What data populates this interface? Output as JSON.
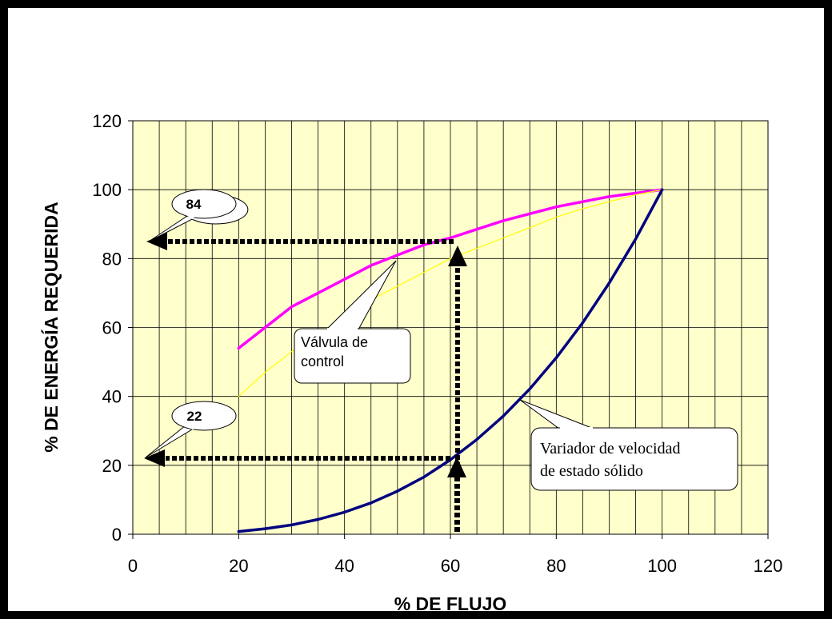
{
  "chart_data": {
    "type": "line",
    "xlabel": "% DE FLUJO",
    "ylabel": "% DE ENERGÍA REQUERIDA",
    "xlim": [
      0,
      120
    ],
    "ylim": [
      0,
      120
    ],
    "xticks": [
      0,
      20,
      40,
      60,
      80,
      100,
      120
    ],
    "yticks": [
      0,
      20,
      40,
      60,
      80,
      100,
      120
    ],
    "grid": true,
    "plot_background": "#FFFFCC",
    "series": [
      {
        "color": "#FF00FF",
        "x": [
          20,
          25,
          30,
          35,
          40,
          45,
          50,
          55,
          60,
          65,
          70,
          75,
          80,
          85,
          90,
          95,
          100
        ],
        "y": [
          54,
          60,
          66,
          70,
          74,
          78,
          81,
          84,
          86,
          88.5,
          91,
          93,
          95,
          96.5,
          98,
          99,
          100
        ]
      },
      {
        "color": "#FFFF00",
        "x": [
          20,
          25,
          30,
          35,
          40,
          45,
          50,
          55,
          60,
          65,
          70,
          75,
          80,
          85,
          90,
          95,
          100
        ],
        "y": [
          40,
          47,
          53,
          58,
          63,
          68,
          72,
          76,
          80,
          83,
          86,
          89,
          92,
          94.5,
          96.5,
          98.5,
          100
        ]
      },
      {
        "color": "#000080",
        "x": [
          20,
          25,
          30,
          35,
          40,
          45,
          50,
          55,
          60,
          65,
          70,
          75,
          80,
          85,
          90,
          95,
          100
        ],
        "y": [
          0.8,
          1.6,
          2.7,
          4.3,
          6.4,
          9.1,
          12.5,
          16.6,
          21.6,
          27.5,
          34.3,
          42.2,
          51.2,
          61.4,
          72.9,
          85.7,
          100
        ]
      }
    ],
    "annotations": {
      "bubble_top": "84",
      "bubble_bottom": "22",
      "valve_line1": "Válvula de",
      "valve_line2": "control",
      "vsd_line1": "Variador de velocidad",
      "vsd_line2": "de estado sólido"
    },
    "reference_lines": [
      {
        "x": 60,
        "y": 84
      },
      {
        "x": 60,
        "y": 22
      }
    ]
  }
}
